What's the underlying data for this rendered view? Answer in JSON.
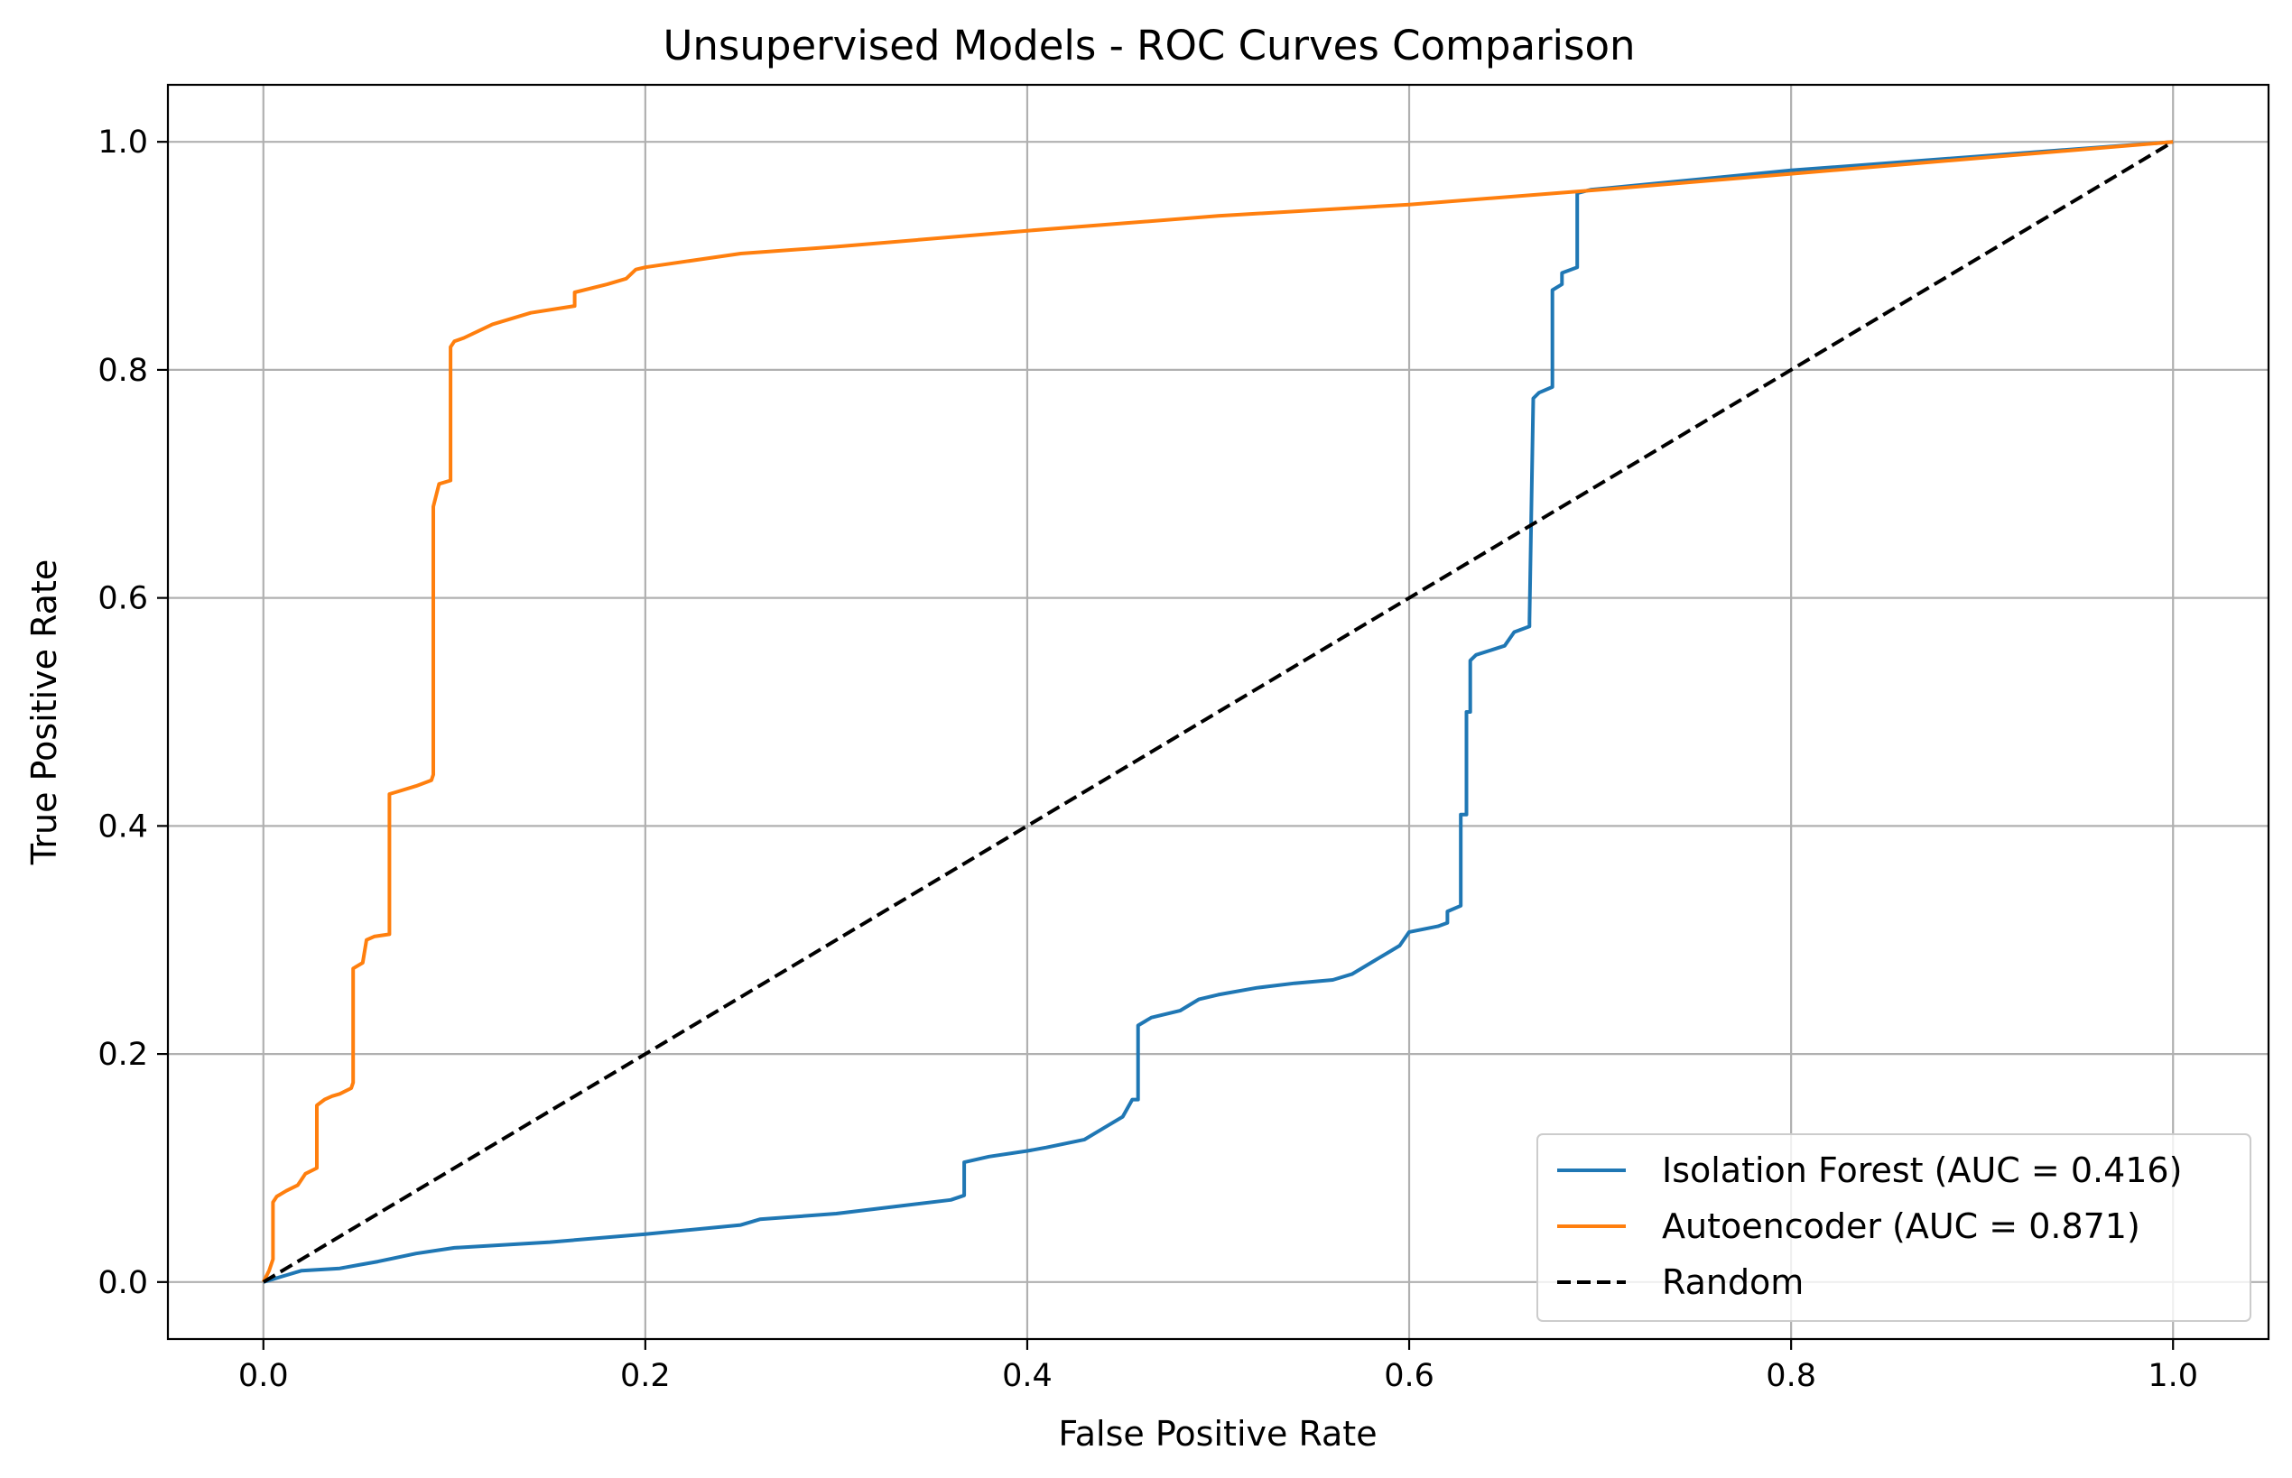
{
  "chart_data": {
    "type": "line",
    "title": "Unsupervised Models - ROC Curves Comparison",
    "xlabel": "False Positive Rate",
    "ylabel": "True Positive Rate",
    "xlim": [
      -0.05,
      1.05
    ],
    "ylim": [
      -0.05,
      1.05
    ],
    "xticks": [
      0.0,
      0.2,
      0.4,
      0.6,
      0.8,
      1.0
    ],
    "yticks": [
      0.0,
      0.2,
      0.4,
      0.6,
      0.8,
      1.0
    ],
    "xtick_labels": [
      "0.0",
      "0.2",
      "0.4",
      "0.6",
      "0.8",
      "1.0"
    ],
    "ytick_labels": [
      "0.0",
      "0.2",
      "0.4",
      "0.6",
      "0.8",
      "1.0"
    ],
    "grid": true,
    "legend_position": "lower-right",
    "series": [
      {
        "name": "Isolation Forest (AUC = 0.416)",
        "color": "#1f77b4",
        "style": "solid",
        "x": [
          0.0,
          0.01,
          0.02,
          0.04,
          0.05,
          0.06,
          0.08,
          0.1,
          0.15,
          0.2,
          0.25,
          0.26,
          0.3,
          0.33,
          0.36,
          0.367,
          0.367,
          0.38,
          0.4,
          0.41,
          0.43,
          0.44,
          0.45,
          0.455,
          0.458,
          0.458,
          0.465,
          0.48,
          0.49,
          0.5,
          0.52,
          0.54,
          0.56,
          0.57,
          0.58,
          0.59,
          0.595,
          0.6,
          0.615,
          0.62,
          0.62,
          0.627,
          0.627,
          0.63,
          0.63,
          0.632,
          0.632,
          0.635,
          0.65,
          0.655,
          0.663,
          0.663,
          0.665,
          0.668,
          0.675,
          0.675,
          0.68,
          0.68,
          0.688,
          0.688,
          0.695,
          0.8,
          1.0
        ],
        "y": [
          0.0,
          0.005,
          0.01,
          0.012,
          0.015,
          0.018,
          0.025,
          0.03,
          0.035,
          0.042,
          0.05,
          0.055,
          0.06,
          0.066,
          0.072,
          0.076,
          0.105,
          0.11,
          0.115,
          0.118,
          0.125,
          0.135,
          0.145,
          0.16,
          0.16,
          0.225,
          0.232,
          0.238,
          0.248,
          0.252,
          0.258,
          0.262,
          0.265,
          0.27,
          0.28,
          0.29,
          0.295,
          0.307,
          0.312,
          0.315,
          0.325,
          0.33,
          0.41,
          0.41,
          0.5,
          0.5,
          0.545,
          0.55,
          0.558,
          0.57,
          0.575,
          0.58,
          0.775,
          0.78,
          0.785,
          0.87,
          0.875,
          0.885,
          0.89,
          0.955,
          0.958,
          0.975,
          1.0
        ]
      },
      {
        "name": "Autoencoder (AUC = 0.871)",
        "color": "#ff7f0e",
        "style": "solid",
        "x": [
          0.0,
          0.003,
          0.005,
          0.005,
          0.007,
          0.012,
          0.018,
          0.02,
          0.022,
          0.028,
          0.028,
          0.032,
          0.036,
          0.04,
          0.046,
          0.047,
          0.047,
          0.052,
          0.054,
          0.058,
          0.066,
          0.066,
          0.07,
          0.08,
          0.088,
          0.089,
          0.089,
          0.092,
          0.098,
          0.098,
          0.1,
          0.105,
          0.12,
          0.14,
          0.163,
          0.163,
          0.18,
          0.19,
          0.195,
          0.2,
          0.25,
          0.3,
          0.4,
          0.5,
          0.6,
          0.7,
          0.8,
          1.0
        ],
        "y": [
          0.0,
          0.01,
          0.02,
          0.07,
          0.075,
          0.08,
          0.085,
          0.09,
          0.095,
          0.1,
          0.155,
          0.16,
          0.163,
          0.165,
          0.17,
          0.175,
          0.275,
          0.28,
          0.3,
          0.303,
          0.305,
          0.428,
          0.43,
          0.435,
          0.44,
          0.445,
          0.68,
          0.7,
          0.703,
          0.82,
          0.825,
          0.828,
          0.84,
          0.85,
          0.856,
          0.868,
          0.875,
          0.88,
          0.888,
          0.89,
          0.902,
          0.908,
          0.922,
          0.935,
          0.945,
          0.958,
          0.972,
          1.0
        ]
      },
      {
        "name": "Random",
        "color": "#000000",
        "style": "dashed",
        "x": [
          0.0,
          1.0
        ],
        "y": [
          0.0,
          1.0
        ]
      }
    ]
  }
}
